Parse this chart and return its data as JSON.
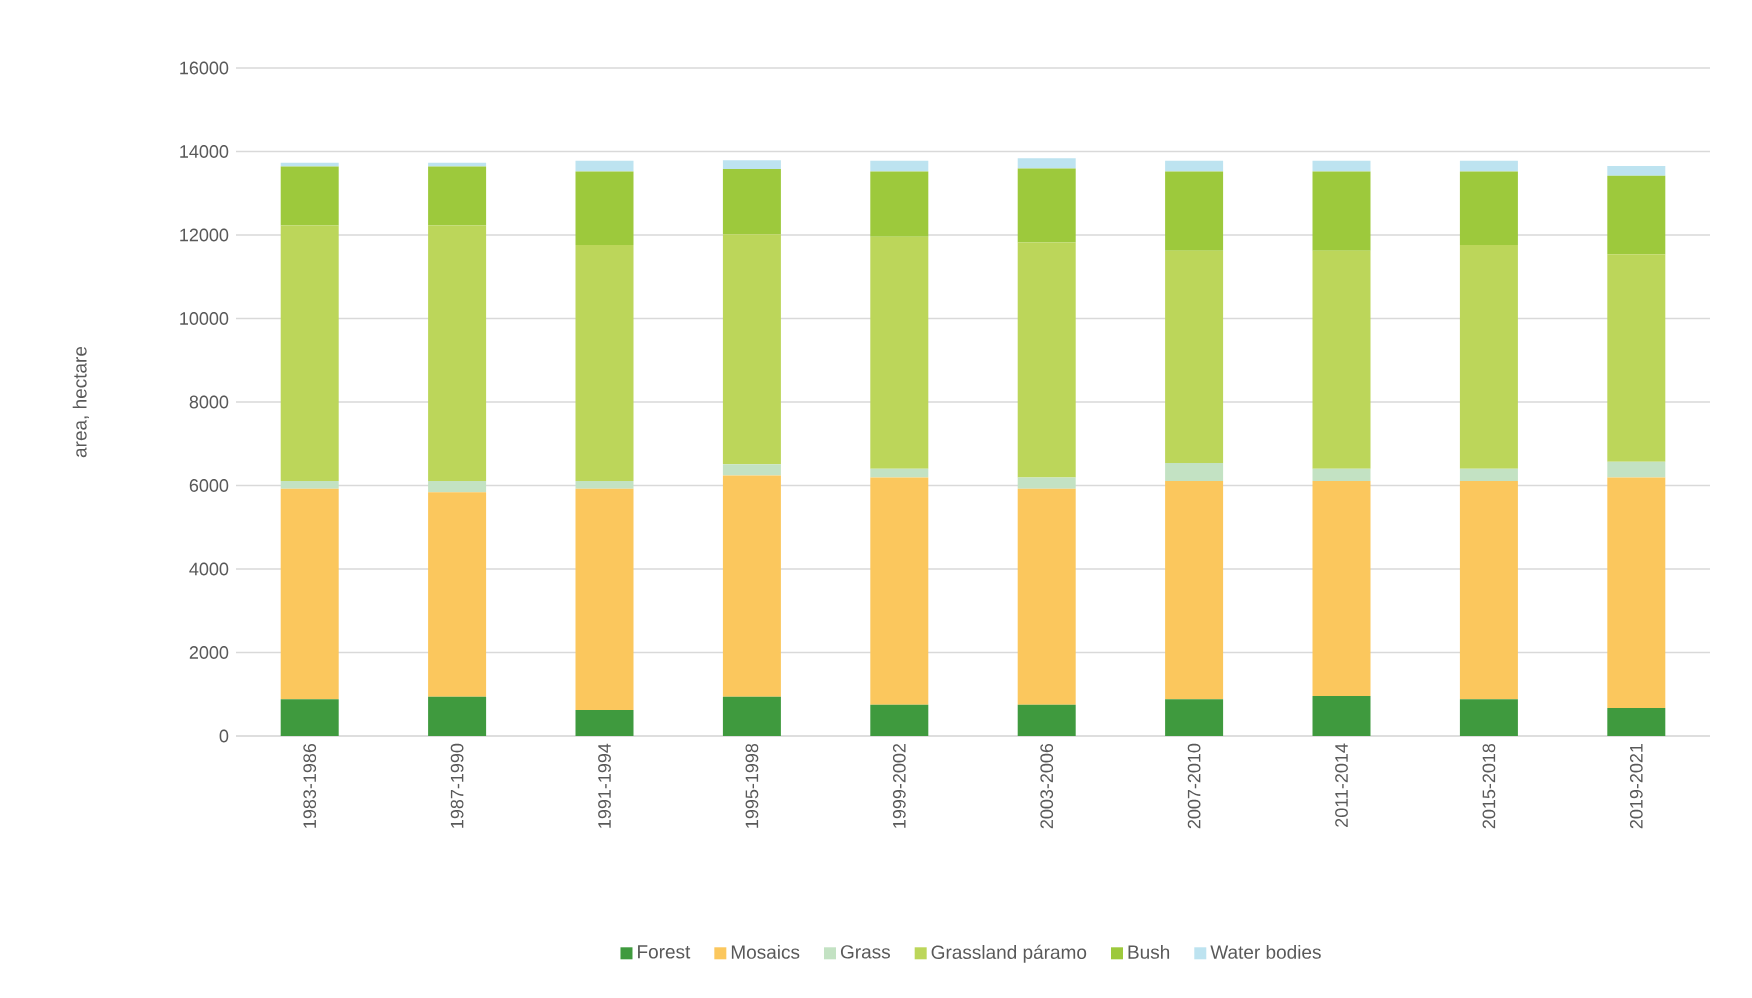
{
  "chart_data": {
    "type": "bar",
    "stacked": true,
    "ylabel": "area, hectare",
    "categories": [
      "1983-1986",
      "1987-1990",
      "1991-1994",
      "1995-1998",
      "1999-2002",
      "2003-2006",
      "2007-2010",
      "2011-2014",
      "2015-2018",
      "2019-2021"
    ],
    "series": [
      {
        "name": "Forest",
        "color": "#3f9a3e",
        "values": [
          880,
          940,
          620,
          940,
          750,
          750,
          880,
          960,
          880,
          670
        ]
      },
      {
        "name": "Mosaics",
        "color": "#fbc75d",
        "values": [
          5040,
          4900,
          5300,
          5300,
          5440,
          5170,
          5230,
          5150,
          5230,
          5520
        ]
      },
      {
        "name": "Grass",
        "color": "#c3e2c3",
        "values": [
          190,
          270,
          190,
          270,
          210,
          270,
          430,
          290,
          290,
          380
        ]
      },
      {
        "name": "Grassland páramo",
        "color": "#bcd65a",
        "values": [
          6120,
          6120,
          5650,
          5510,
          5560,
          5630,
          5080,
          5220,
          5360,
          4970
        ]
      },
      {
        "name": "Bush",
        "color": "#9dc93c",
        "values": [
          1410,
          1410,
          1760,
          1560,
          1560,
          1770,
          1900,
          1900,
          1760,
          1880
        ]
      },
      {
        "name": "Water bodies",
        "color": "#bde3f0",
        "values": [
          90,
          90,
          260,
          210,
          260,
          250,
          260,
          260,
          260,
          230
        ]
      }
    ],
    "ylim": [
      0,
      16000
    ],
    "yticks": [
      0,
      2000,
      4000,
      6000,
      8000,
      10000,
      12000,
      14000,
      16000
    ],
    "grid": "y",
    "legend": "bottom"
  }
}
